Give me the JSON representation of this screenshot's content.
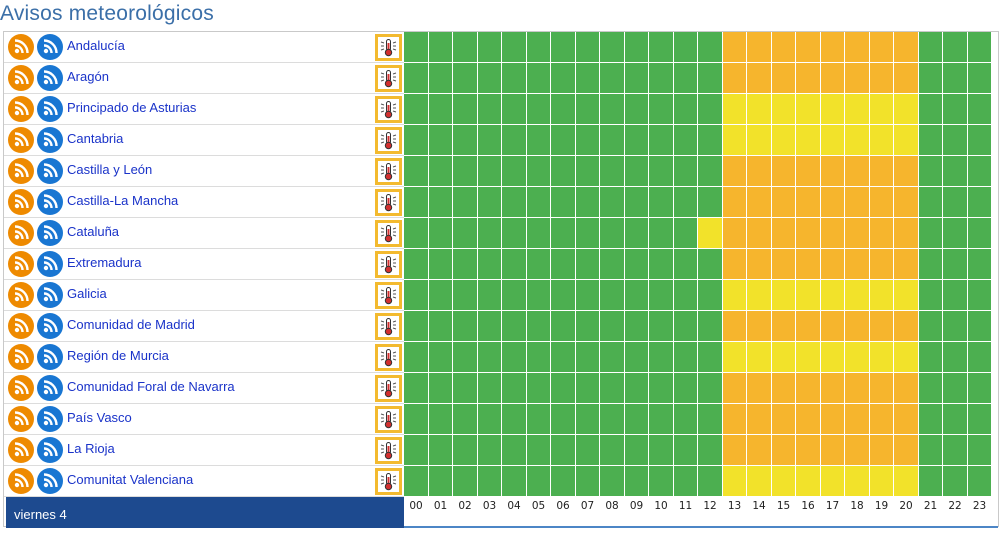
{
  "page": {
    "title": "Avisos meteorológicos"
  },
  "colors": {
    "green": "#4caf50",
    "yellow": "#f2e22a",
    "orange": "#f6b52d",
    "rss_orange": "#ee8a00",
    "rss_blue": "#1976d2",
    "day_bar": "#1d4a8f",
    "link": "#1a33c9"
  },
  "regions": [
    {
      "name": "Andalucía",
      "hours": "GGGGGGGGGGGGGOOOOOOOOGGG"
    },
    {
      "name": "Aragón",
      "hours": "GGGGGGGGGGGGGOOOOOOOOGGG"
    },
    {
      "name": "Principado de Asturias",
      "hours": "GGGGGGGGGGGGGYYYYYYYYGGG"
    },
    {
      "name": "Cantabria",
      "hours": "GGGGGGGGGGGGGYYYYYYYYGGG"
    },
    {
      "name": "Castilla y León",
      "hours": "GGGGGGGGGGGGGOOOOOOOOGGG"
    },
    {
      "name": "Castilla-La Mancha",
      "hours": "GGGGGGGGGGGGGOOOOOOOOGGG"
    },
    {
      "name": "Cataluña",
      "hours": "GGGGGGGGGGGGYOOOOOOOOGGG"
    },
    {
      "name": "Extremadura",
      "hours": "GGGGGGGGGGGGGOOOOOOOOGGG"
    },
    {
      "name": "Galicia",
      "hours": "GGGGGGGGGGGGGYYYYYYYYGGG"
    },
    {
      "name": "Comunidad de Madrid",
      "hours": "GGGGGGGGGGGGGOOOOOOOOGGG"
    },
    {
      "name": "Región de Murcia",
      "hours": "GGGGGGGGGGGGGYYYYYYYYGGG"
    },
    {
      "name": "Comunidad Foral de Navarra",
      "hours": "GGGGGGGGGGGGGOOOOOOOOGGG"
    },
    {
      "name": "País Vasco",
      "hours": "GGGGGGGGGGGGGOOOOOOOOGGG"
    },
    {
      "name": "La Rioja",
      "hours": "GGGGGGGGGGGGGOOOOOOOOGGG"
    },
    {
      "name": "Comunitat Valenciana",
      "hours": "GGGGGGGGGGGGGYYYYYYYYGGG"
    }
  ],
  "timeline": {
    "day_label": "viernes 4",
    "hours": [
      "00",
      "01",
      "02",
      "03",
      "04",
      "05",
      "06",
      "07",
      "08",
      "09",
      "10",
      "11",
      "12",
      "13",
      "14",
      "15",
      "16",
      "17",
      "18",
      "19",
      "20",
      "21",
      "22",
      "23"
    ]
  }
}
